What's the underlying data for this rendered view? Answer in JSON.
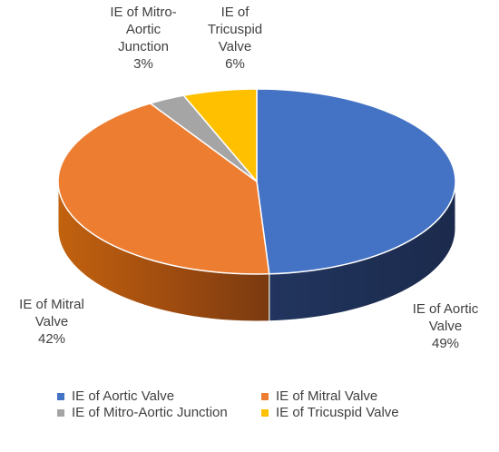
{
  "chart_data": {
    "type": "pie",
    "title": "",
    "slices": [
      {
        "name": "IE of Aortic Valve",
        "label_lines": [
          "IE of Aortic",
          "Valve"
        ],
        "value": 49,
        "value_label": "49%",
        "color": "#4472c4"
      },
      {
        "name": "IE of Mitral Valve",
        "label_lines": [
          "IE of Mitral",
          "Valve"
        ],
        "value": 42,
        "value_label": "42%",
        "color": "#ed7d31"
      },
      {
        "name": "IE of Mitro-Aortic Junction",
        "label_lines": [
          "IE of Mitro-",
          "Aortic",
          "Junction"
        ],
        "value": 3,
        "value_label": "3%",
        "color": "#a5a5a5"
      },
      {
        "name": "IE of Tricuspid Valve",
        "label_lines": [
          "IE of",
          "Tricuspid",
          "Valve"
        ],
        "value": 6,
        "value_label": "6%",
        "color": "#ffc000"
      }
    ],
    "style": "3d",
    "legend_position": "bottom"
  }
}
